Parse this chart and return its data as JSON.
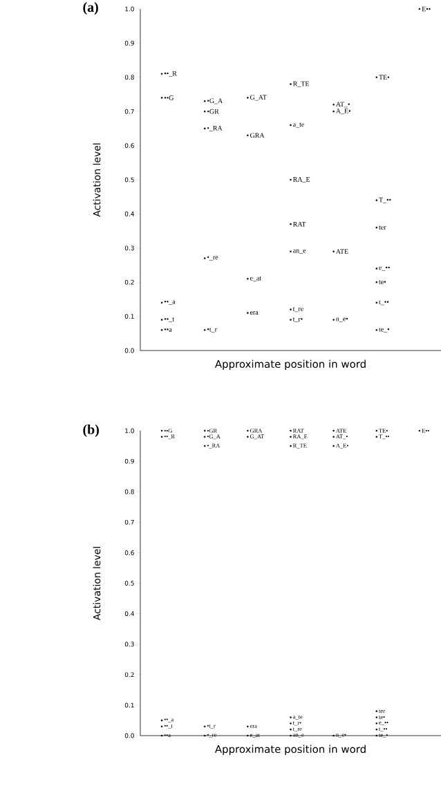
{
  "chart_data": [
    {
      "type": "scatter",
      "marker": "circle",
      "title": "(a)",
      "xlabel": "Approximate position in word",
      "ylabel": "Activation level",
      "categories": [
        null,
        null,
        null,
        null,
        null,
        null,
        null
      ],
      "ylim": [
        0,
        1
      ],
      "yticks": [
        {
          "value": 0,
          "label": "0.0"
        },
        {
          "value": 0.1,
          "label": "0.1"
        },
        {
          "value": 0.2,
          "label": "0.2"
        },
        {
          "value": 0.3,
          "label": "0.3"
        },
        {
          "value": 0.4,
          "label": "0.4"
        },
        {
          "value": 0.5,
          "label": "0.5"
        },
        {
          "value": 0.6,
          "label": "0.6"
        },
        {
          "value": 0.7,
          "label": "0.7"
        },
        {
          "value": 0.8,
          "label": "0.8"
        },
        {
          "value": 0.9,
          "label": "0.9"
        },
        {
          "value": 1,
          "label": "1.0"
        }
      ],
      "series": [
        {
          "color": "#000000",
          "values": [
            0.81,
            0.73,
            0.74,
            0.78,
            0.72,
            0.8,
            1.0
          ],
          "value_labels": [
            "••_R",
            "•G_A",
            "G_AT",
            "R_TE",
            "AT_•",
            "TE•",
            "E••"
          ]
        },
        {
          "color": "#000000",
          "values": [
            0.74,
            0.7,
            0.63,
            0.66,
            0.7,
            0.44,
            null
          ],
          "value_labels": [
            "••G",
            "•GR",
            "GRA",
            "a_te",
            "A_E•",
            "T_••",
            null
          ]
        },
        {
          "color": "#000000",
          "values": [
            0.14,
            0.65,
            0.21,
            0.5,
            0.29,
            0.36,
            null
          ],
          "value_labels": [
            "••_a",
            "•_RA",
            "e_at",
            "RA_E",
            "ATE",
            "ter",
            null
          ]
        },
        {
          "color": "#000000",
          "values": [
            0.09,
            0.27,
            0.11,
            0.37,
            0.09,
            0.24,
            null
          ],
          "value_labels": [
            "••_t",
            "•_re",
            "era",
            "RAT",
            "n_e•",
            "e_••",
            null
          ]
        },
        {
          "color": "#000000",
          "values": [
            0.06,
            0.06,
            null,
            0.29,
            null,
            0.2,
            null
          ],
          "value_labels": [
            "••a",
            "•t_r",
            null,
            "an_e",
            null,
            "te•",
            null
          ]
        },
        {
          "color": "#000000",
          "values": [
            null,
            null,
            null,
            0.12,
            null,
            0.14,
            null
          ],
          "value_labels": [
            null,
            null,
            null,
            "t_re",
            null,
            "t_••",
            null
          ]
        },
        {
          "color": "#000000",
          "values": [
            null,
            null,
            null,
            0.09,
            null,
            0.06,
            null
          ],
          "value_labels": [
            null,
            null,
            null,
            "t_r•",
            null,
            "te_•",
            null
          ]
        }
      ]
    },
    {
      "type": "scatter",
      "marker": "circle",
      "title": "(b)",
      "xlabel": "Approximate position in word",
      "ylabel": "Activation level",
      "categories": [
        null,
        null,
        null,
        null,
        null,
        null,
        null
      ],
      "ylim": [
        0,
        1
      ],
      "yticks": [
        {
          "value": 0,
          "label": "0.0"
        },
        {
          "value": 0.1,
          "label": "0.1"
        },
        {
          "value": 0.2,
          "label": "0.2"
        },
        {
          "value": 0.3,
          "label": "0.3"
        },
        {
          "value": 0.4,
          "label": "0.4"
        },
        {
          "value": 0.5,
          "label": "0.5"
        },
        {
          "value": 0.6,
          "label": "0.6"
        },
        {
          "value": 0.7,
          "label": "0.7"
        },
        {
          "value": 0.8,
          "label": "0.8"
        },
        {
          "value": 0.9,
          "label": "0.9"
        },
        {
          "value": 1,
          "label": "1.0"
        }
      ],
      "series": [
        {
          "color": "#000000",
          "values": [
            1.0,
            1.0,
            1.0,
            1.0,
            1.0,
            1.0,
            1.0
          ],
          "value_labels": [
            "••G",
            "•GR",
            "GRA",
            "RAT",
            "ATE",
            "TE•",
            "E••"
          ]
        },
        {
          "color": "#000000",
          "values": [
            0.98,
            0.98,
            0.98,
            0.98,
            0.98,
            0.98,
            null
          ],
          "value_labels": [
            "••_R",
            "•G_A",
            "G_AT",
            "RA_E",
            "AT_•",
            "T_••",
            null
          ]
        },
        {
          "color": "#000000",
          "values": [
            0.05,
            0.95,
            0.03,
            0.95,
            0.95,
            0.08,
            null
          ],
          "value_labels": [
            "••_a",
            "•_RA",
            "era",
            "R_TE",
            "A_E•",
            "ter",
            null
          ]
        },
        {
          "color": "#000000",
          "values": [
            0.03,
            0.03,
            0,
            0.06,
            0,
            0.06,
            null
          ],
          "value_labels": [
            "••_t",
            "•t_r",
            "e_at",
            "a_te",
            "n_e•",
            "te•",
            null
          ]
        },
        {
          "color": "#000000",
          "values": [
            0,
            0,
            null,
            0.04,
            null,
            0.04,
            null
          ],
          "value_labels": [
            "••a",
            "•_re",
            null,
            "t_r•",
            null,
            "e_••",
            null
          ]
        },
        {
          "color": "#000000",
          "values": [
            null,
            null,
            null,
            0.02,
            null,
            0.02,
            null
          ],
          "value_labels": [
            null,
            null,
            null,
            "t_re",
            null,
            "t_••",
            null
          ]
        },
        {
          "color": "#000000",
          "values": [
            null,
            null,
            null,
            0,
            null,
            0,
            null
          ],
          "value_labels": [
            null,
            null,
            null,
            "an_e",
            null,
            "te_•",
            null
          ]
        }
      ]
    }
  ]
}
